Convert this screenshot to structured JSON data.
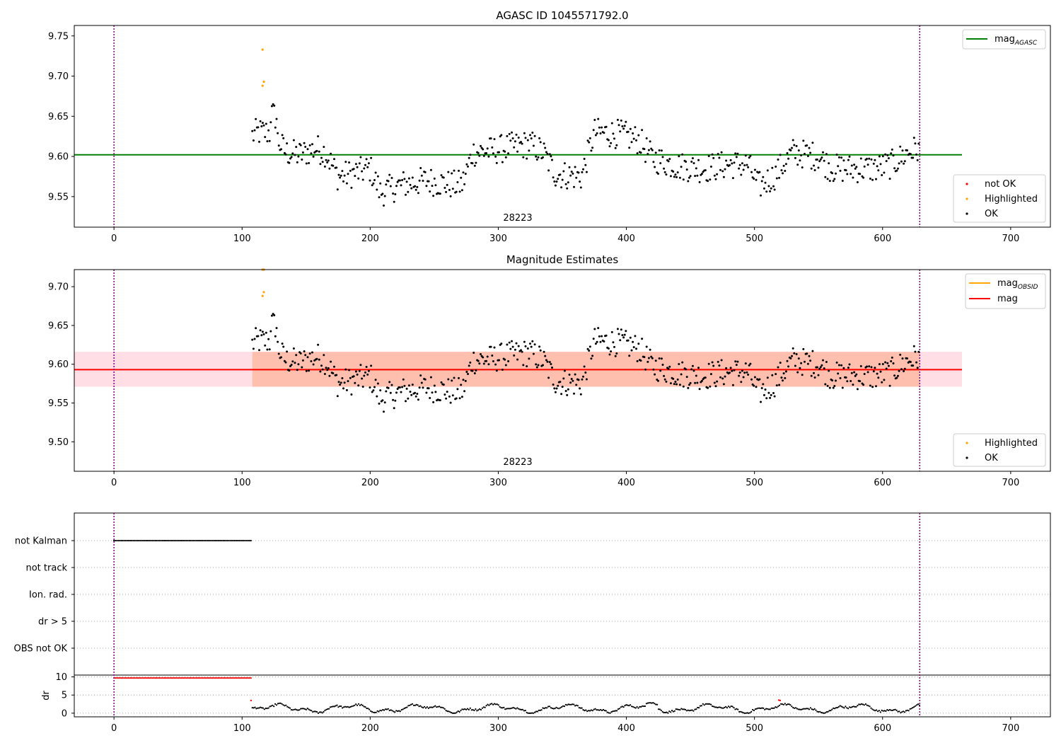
{
  "chart_data": [
    {
      "id": "panel1",
      "type": "scatter",
      "title": "AGASC ID 1045571792.0",
      "annotation": "28223",
      "xlim": [
        -31,
        731
      ],
      "ylim": [
        9.512,
        9.763
      ],
      "xticks": [
        0,
        100,
        200,
        300,
        400,
        500,
        600,
        700
      ],
      "yticks": [
        9.55,
        9.6,
        9.65,
        9.7,
        9.75
      ],
      "ytick_labels": [
        "9.55",
        "9.60",
        "9.65",
        "9.70",
        "9.75"
      ],
      "vlines": [
        0,
        629
      ],
      "hlines": [
        {
          "label": "mag",
          "subscript": "AGASC",
          "y": 9.602,
          "x": [
            -31,
            662
          ],
          "color": "#008000"
        }
      ],
      "series": [
        {
          "name": "not OK",
          "color": "#ff0000",
          "points": []
        },
        {
          "name": "Highlighted",
          "color": "#ffa500",
          "points": [
            [
              116,
              9.733
            ],
            [
              116,
              9.688
            ],
            [
              117,
              9.693
            ]
          ]
        },
        {
          "name": "OK",
          "color": "#000000",
          "points": "generated: ~570 observations, x 108–629, y 9.54–9.65 (mean ≈ 9.59)"
        }
      ],
      "legend_upper": "top-right",
      "legend_lower": "bottom-right",
      "grid": false
    },
    {
      "id": "panel2",
      "type": "scatter",
      "title": "Magnitude Estimates",
      "annotation": "28223",
      "xlim": [
        -31,
        731
      ],
      "ylim": [
        9.462,
        9.722
      ],
      "xticks": [
        0,
        100,
        200,
        300,
        400,
        500,
        600,
        700
      ],
      "yticks": [
        9.5,
        9.55,
        9.6,
        9.65,
        9.7
      ],
      "ytick_labels": [
        "9.50",
        "9.55",
        "9.60",
        "9.65",
        "9.70"
      ],
      "vlines": [
        0,
        629
      ],
      "hlines": [
        {
          "label": "mag",
          "subscript": "OBSID",
          "y": 9.593,
          "x": [
            108,
            629
          ],
          "color": "#ffa500"
        },
        {
          "label": "mag",
          "subscript": "",
          "y": 9.593,
          "x": [
            -31,
            662
          ],
          "color": "#ff0000"
        }
      ],
      "bands": [
        {
          "y": [
            9.571,
            9.616
          ],
          "x": [
            -31,
            662
          ],
          "color": "#ffc0cb"
        },
        {
          "y": [
            9.571,
            9.616
          ],
          "x": [
            108,
            629
          ],
          "color": "#ffa07a"
        }
      ],
      "series": [
        {
          "name": "Highlighted",
          "color": "#ffa500",
          "points": [
            [
              116,
              9.722
            ],
            [
              117,
              9.722
            ],
            [
              116,
              9.688
            ],
            [
              117,
              9.693
            ]
          ]
        },
        {
          "name": "OK",
          "color": "#000000",
          "points": "same observations as panel 1"
        }
      ],
      "legend_upper": "top-right",
      "legend_lower": "bottom-right",
      "grid": false
    },
    {
      "id": "panel3",
      "type": "scatter",
      "title": "",
      "xlim": [
        -31,
        731
      ],
      "xticks": [
        0,
        100,
        200,
        300,
        400,
        500,
        600,
        700
      ],
      "categories": [
        "not Kalman",
        "not track",
        "Ion. rad.",
        "dr > 5",
        "OBS not OK"
      ],
      "vlines": [
        0,
        629
      ],
      "flags": [
        {
          "category": "not Kalman",
          "x": [
            0,
            107
          ]
        }
      ],
      "grid": "horizontal dotted"
    },
    {
      "id": "panel4",
      "type": "scatter",
      "title": "",
      "ylabel": "dr",
      "xlim": [
        -31,
        731
      ],
      "ylim": [
        -1,
        10.5
      ],
      "xticks": [
        0,
        100,
        200,
        300,
        400,
        500,
        600,
        700
      ],
      "yticks": [
        0,
        5,
        10
      ],
      "vlines": [
        0,
        629
      ],
      "series": [
        {
          "name": "",
          "color": "#ff0000",
          "points": "x 0–107 at dr ≈ 9.7, plus [107, 3.5], [519, 3.6], [520, 3.5]"
        },
        {
          "name": "",
          "color": "#000000",
          "points": "generated: x 108–629, dr 0–3"
        }
      ],
      "grid": "horizontal dotted"
    }
  ]
}
